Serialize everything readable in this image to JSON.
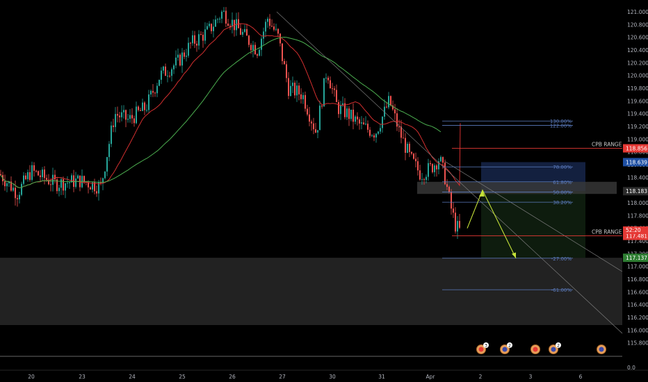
{
  "chart_data": {
    "type": "candlestick",
    "price_axis": {
      "ticks": [
        "121.000",
        "120.800",
        "120.600",
        "120.400",
        "120.200",
        "120.000",
        "119.800",
        "119.600",
        "119.400",
        "119.200",
        "119.000",
        "118.800",
        "118.600",
        "118.400",
        "118.200",
        "118.000",
        "117.800",
        "117.600",
        "117.400",
        "117.200",
        "117.000",
        "116.800",
        "116.600",
        "116.400",
        "116.200",
        "116.000",
        "115.800"
      ],
      "extra_tick": "0.0",
      "range": [
        115.7,
        121.08
      ]
    },
    "time_axis": {
      "labels": [
        "20",
        "23",
        "24",
        "25",
        "26",
        "27",
        "30",
        "31",
        "Apr",
        "2",
        "3",
        "6"
      ]
    },
    "price_tags": [
      {
        "value": 118.856,
        "label": "118.856",
        "color": "#e53935"
      },
      {
        "value": 118.639,
        "label": "118.639",
        "color": "#1e4fa3"
      },
      {
        "value": 118.183,
        "label": "118.183",
        "color": "#2b2b2b"
      },
      {
        "value": 117.481,
        "label": "117.481",
        "color": "#e53935"
      },
      {
        "value": 117.137,
        "label": "117.137",
        "color": "#2e7d32"
      }
    ],
    "countdown_tag": {
      "label": "52:20",
      "color": "#e53935"
    },
    "fib_levels": [
      {
        "value": 119.285,
        "label": "130.00%"
      },
      {
        "value": 119.217,
        "label": "122.00%"
      },
      {
        "value": 118.565,
        "label": "78.00%"
      },
      {
        "value": 118.33,
        "label": "61.80%"
      },
      {
        "value": 118.17,
        "label": "50.00%"
      },
      {
        "value": 118.01,
        "label": "38.20%"
      },
      {
        "value": 117.13,
        "label": "-27.00%"
      },
      {
        "value": 116.635,
        "label": "-61.00%"
      }
    ],
    "range_labels": [
      {
        "value": 118.856,
        "label": "CPB RANGE"
      },
      {
        "value": 117.481,
        "label": "CPB RANGE"
      }
    ],
    "zone": {
      "top": 117.137,
      "bottom": 116.08
    },
    "colors": {
      "bull": "#26a69a",
      "bear": "#ef5350",
      "ma_red": "#d32f2f",
      "ma_green": "#4caf50",
      "fib": "#5c7cbf",
      "arrow": "#c6e339",
      "zone": "#222222"
    },
    "candles": []
  }
}
